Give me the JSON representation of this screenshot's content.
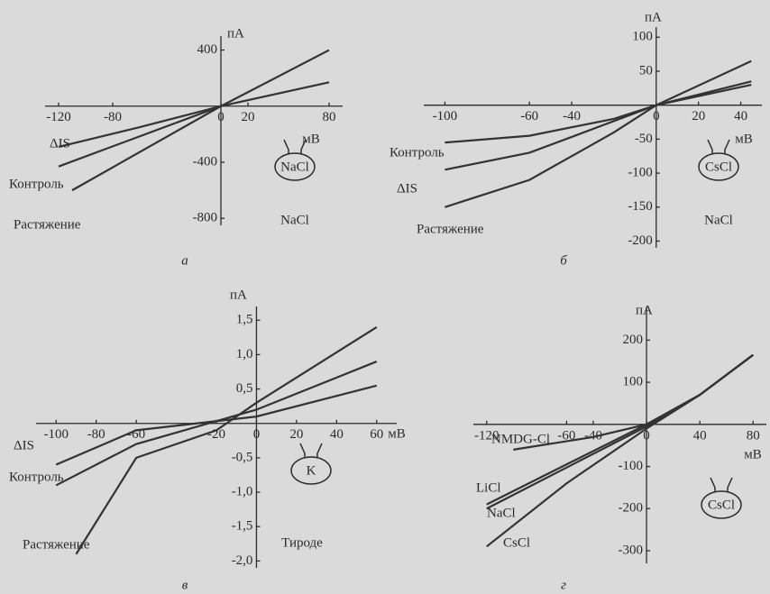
{
  "chart_data": [
    {
      "type": "line",
      "label": "а",
      "y_unit": "пА",
      "x_unit": "мВ",
      "pipette_inner": "NaCl",
      "pipette_outer": "NaCl",
      "xlim": [
        -130,
        90
      ],
      "ylim": [
        -850,
        500
      ],
      "xticks": [
        -120,
        -80,
        0,
        20,
        80
      ],
      "yticks": [
        400,
        -400,
        -800
      ],
      "series": [
        {
          "name": "ΔIS",
          "color": "#333333",
          "x": [
            -120,
            -60,
            0
          ],
          "values": [
            -290,
            -150,
            0
          ]
        },
        {
          "name": "Контроль",
          "color": "#333333",
          "x": [
            -120,
            0,
            80
          ],
          "values": [
            -430,
            0,
            170
          ]
        },
        {
          "name": "Растяжение",
          "color": "#333333",
          "x": [
            -110,
            0,
            80
          ],
          "values": [
            -600,
            0,
            400
          ]
        }
      ]
    },
    {
      "type": "line",
      "label": "б",
      "y_unit": "пА",
      "x_unit": "мВ",
      "pipette_inner": "CsCl",
      "pipette_outer": "NaCl",
      "xlim": [
        -110,
        50
      ],
      "ylim": [
        -210,
        115
      ],
      "xticks": [
        -100,
        -60,
        -40,
        0,
        20,
        40
      ],
      "yticks": [
        100,
        50,
        -50,
        -100,
        -150,
        -200
      ],
      "series": [
        {
          "name": "Контроль",
          "color": "#333333",
          "x": [
            -100,
            -60,
            -20,
            0,
            45
          ],
          "values": [
            -55,
            -45,
            -20,
            0,
            30
          ]
        },
        {
          "name": "ΔIS",
          "color": "#333333",
          "x": [
            -100,
            -60,
            0,
            45
          ],
          "values": [
            -95,
            -70,
            0,
            35
          ]
        },
        {
          "name": "Растяжение",
          "color": "#333333",
          "x": [
            -100,
            -60,
            -20,
            0,
            45
          ],
          "values": [
            -150,
            -110,
            -40,
            0,
            65
          ]
        }
      ]
    },
    {
      "type": "line",
      "label": "в",
      "y_unit": "пА",
      "x_unit": "мВ",
      "pipette_inner": "K",
      "pipette_outer": "Тироде",
      "xlim": [
        -110,
        70
      ],
      "ylim": [
        -2.1,
        1.7
      ],
      "xticks": [
        -100,
        -80,
        -60,
        -20,
        0,
        20,
        40,
        60
      ],
      "yticks": [
        {
          "value": 1.5,
          "label": "1,5"
        },
        {
          "value": 1.0,
          "label": "1,0"
        },
        {
          "value": 0.5,
          "label": "0,5"
        },
        {
          "value": -0.5,
          "label": "-0,5"
        },
        {
          "value": -1.0,
          "label": "-1,0"
        },
        {
          "value": -1.5,
          "label": "-1,5"
        },
        {
          "value": -2.0,
          "label": "-2,0"
        }
      ],
      "series": [
        {
          "name": "ΔIS",
          "color": "#333333",
          "x": [
            -100,
            -60,
            0,
            60
          ],
          "values": [
            -0.6,
            -0.1,
            0.1,
            0.55
          ]
        },
        {
          "name": "Контроль",
          "color": "#333333",
          "x": [
            -100,
            -60,
            0,
            60
          ],
          "values": [
            -0.9,
            -0.3,
            0.2,
            0.9
          ]
        },
        {
          "name": "Растяжение",
          "color": "#333333",
          "x": [
            -90,
            -60,
            -20,
            0,
            60
          ],
          "values": [
            -1.9,
            -0.5,
            -0.1,
            0.3,
            1.4
          ]
        }
      ]
    },
    {
      "type": "line",
      "label": "г",
      "y_unit": "пА",
      "x_unit": "мВ",
      "pipette_inner": "CsCl",
      "xlim": [
        -130,
        90
      ],
      "ylim": [
        -330,
        280
      ],
      "xticks": [
        -120,
        -60,
        -40,
        0,
        40,
        80
      ],
      "yticks": [
        200,
        100,
        -100,
        -200,
        -300
      ],
      "series": [
        {
          "name": "NMDG-Cl",
          "color": "#333333",
          "x": [
            -100,
            -40,
            0,
            40,
            80
          ],
          "values": [
            -60,
            -30,
            0,
            70,
            165
          ]
        },
        {
          "name": "LiCl",
          "color": "#333333",
          "x": [
            -120,
            0,
            40,
            80
          ],
          "values": [
            -190,
            0,
            70,
            165
          ]
        },
        {
          "name": "NaCl",
          "color": "#333333",
          "x": [
            -120,
            0,
            40,
            80
          ],
          "values": [
            -200,
            -5,
            70,
            165
          ]
        },
        {
          "name": "CsCl",
          "color": "#333333",
          "x": [
            -120,
            -60,
            0,
            40,
            80
          ],
          "values": [
            -290,
            -140,
            -10,
            70,
            165
          ]
        }
      ]
    }
  ]
}
